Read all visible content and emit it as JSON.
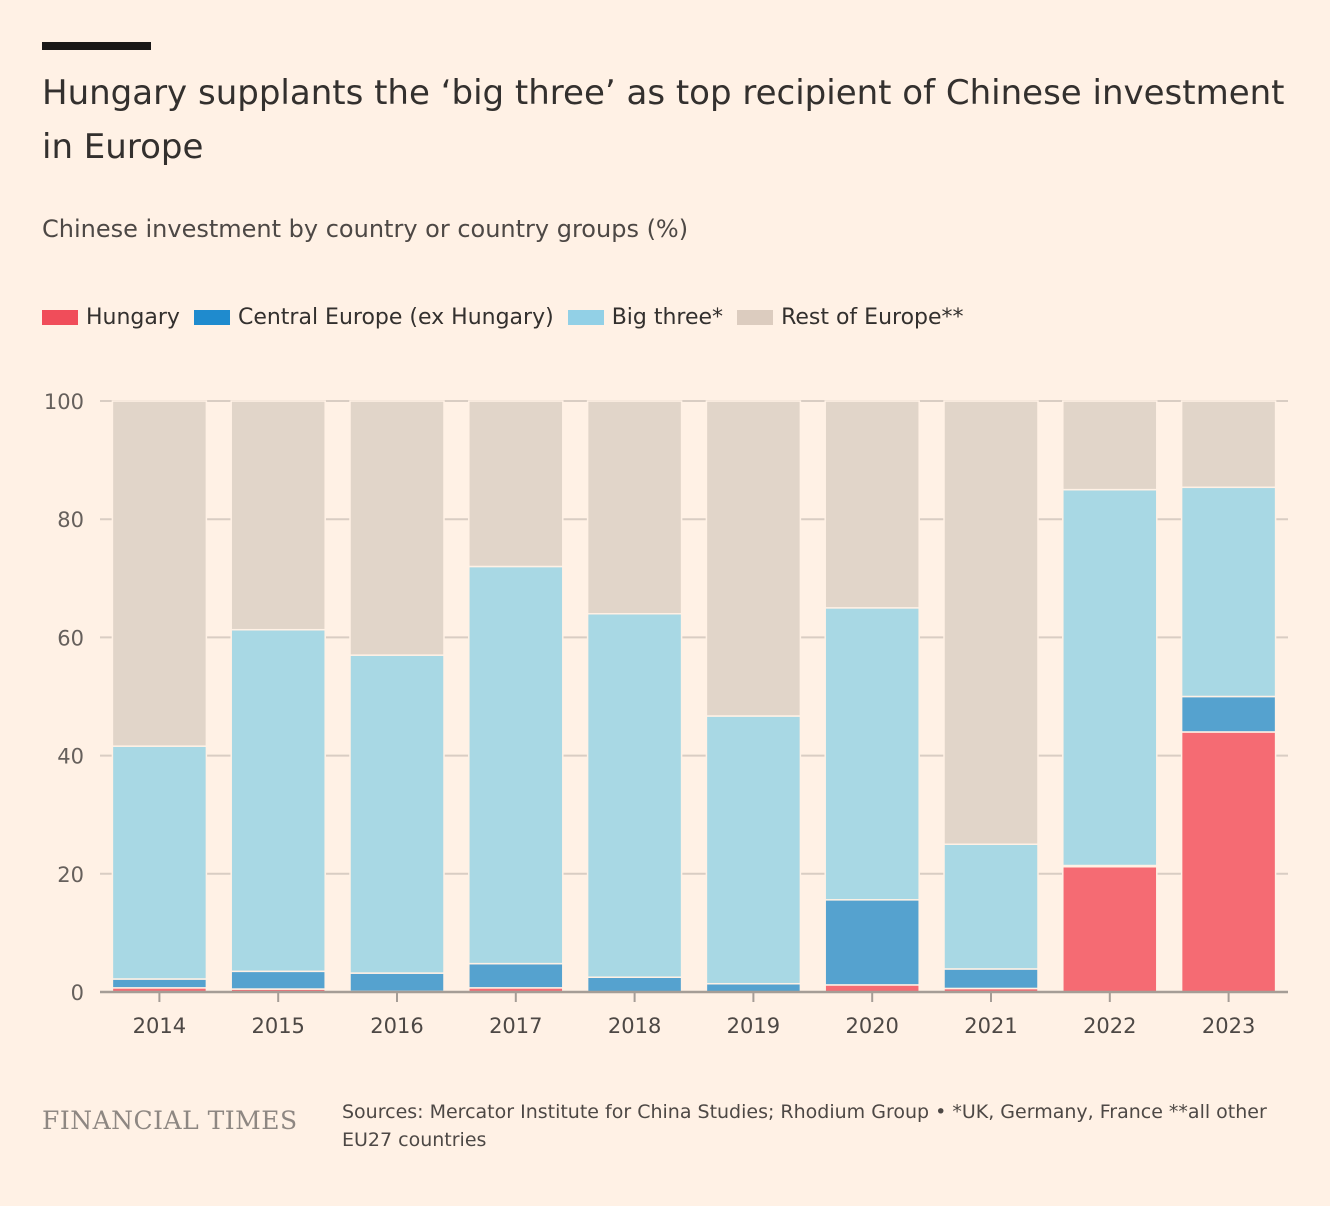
{
  "title": "Hungary supplants the ‘big three’ as top recipient of Chinese investment in Europe",
  "subtitle": "Chinese investment by country or country groups (%)",
  "source": "Sources: Mercator Institute for China Studies; Rhodium Group • *UK, Germany, France **all other EU27 countries",
  "brand": "FINANCIAL TIMES",
  "chart_data": {
    "type": "bar",
    "stacked": true,
    "title": "Hungary supplants the ‘big three’ as top recipient of Chinese investment in Europe",
    "ylabel": "Chinese investment by country or country groups (%)",
    "ylim": [
      0,
      100
    ],
    "yticks": [
      "0",
      "20",
      "40",
      "60",
      "80",
      "100"
    ],
    "categories": [
      "2014",
      "2015",
      "2016",
      "2017",
      "2018",
      "2019",
      "2020",
      "2021",
      "2022",
      "2023"
    ],
    "legend_position": "top-left",
    "series": [
      {
        "name": "Hungary",
        "color": "#f56b73",
        "legend_color": "#f04d5a",
        "values": [
          0.7,
          0.5,
          0.1,
          0.7,
          0,
          0,
          1.2,
          0.6,
          21.2,
          44
        ]
      },
      {
        "name": "Central Europe (ex Hungary)",
        "color": "#55a2cf",
        "legend_color": "#1f8bce",
        "values": [
          1.5,
          3.0,
          3.1,
          4.1,
          2.5,
          1.4,
          14.4,
          3.3,
          0.2,
          6
        ]
      },
      {
        "name": "Big three*",
        "color": "#a8d8e4",
        "legend_color": "#92d0e6",
        "values": [
          39.4,
          57.8,
          53.8,
          67.2,
          61.5,
          45.3,
          49.4,
          21.1,
          63.6,
          35.4
        ]
      },
      {
        "name": "Rest of Europe**",
        "color": "#e1d5c9",
        "legend_color": "#dcccbf",
        "values": [
          58.4,
          38.7,
          43,
          28,
          36,
          53.3,
          35,
          75,
          15,
          14.6
        ]
      }
    ]
  }
}
